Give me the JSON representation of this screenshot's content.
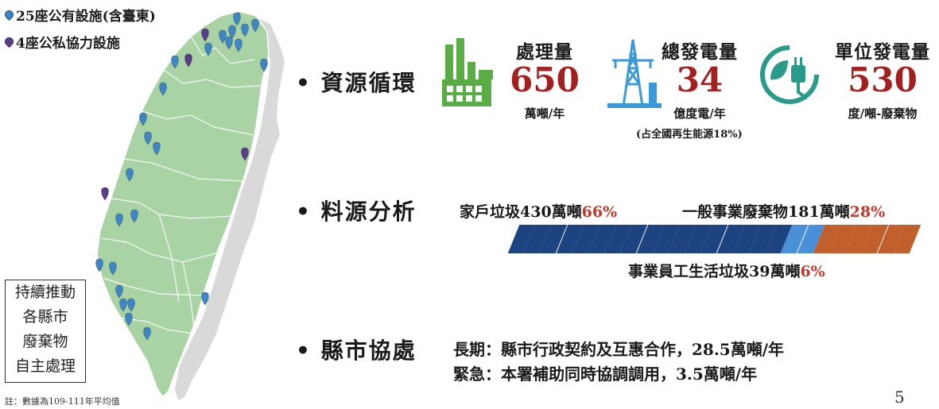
{
  "legend": {
    "public_label": "25座公有設施(含臺東)",
    "partnership_label": "4座公私協力設施",
    "public_color": "#3f86c6",
    "partnership_color": "#5a3d87"
  },
  "map": {
    "map_color": "#a9d3a4",
    "shadow_color": "#d8d8d8"
  },
  "side_box": {
    "lines": [
      "持續推動",
      "各縣市",
      "廢棄物",
      "自主處理"
    ]
  },
  "footnote": "註：數據為109-111年平均值",
  "page_number": "5",
  "sections": {
    "resource": {
      "heading": "資源循環",
      "metrics": [
        {
          "icon": "factory-icon",
          "title": "處理量",
          "value": "650",
          "unit": "萬噸/年",
          "icon_color": "#5aad45"
        },
        {
          "icon": "power-tower-icon",
          "title": "總發電量",
          "value": "34",
          "unit": "億度電/年",
          "icon_color": "#3a9ad9"
        },
        {
          "icon": "plug-leaf-icon",
          "title": "單位發電量",
          "value": "530",
          "unit": "度/噸-廢棄物",
          "icon_color": "#2a9a8a"
        }
      ],
      "note": "(占全國再生能源18%)"
    },
    "source": {
      "heading": "料源分析",
      "household": {
        "text": "家戶垃圾430萬噸",
        "pct": "66%"
      },
      "business": {
        "text": "一般事業廢棄物181萬噸",
        "pct": "28%"
      },
      "employee": {
        "text": "事業員工生活垃圾39萬噸",
        "pct": "6%"
      },
      "bar_shares": {
        "household": 66,
        "employee": 6,
        "business": 28
      },
      "bar_colors": {
        "household": "#1d4480",
        "employee": "#4a90d9",
        "business": "#c2602d"
      }
    },
    "county": {
      "heading": "縣市協處",
      "long_term": "長期：縣市行政契約及互惠合作，28.5萬噸/年",
      "urgent": "緊急：本署補助同時協調調用，3.5萬噸/年"
    }
  }
}
